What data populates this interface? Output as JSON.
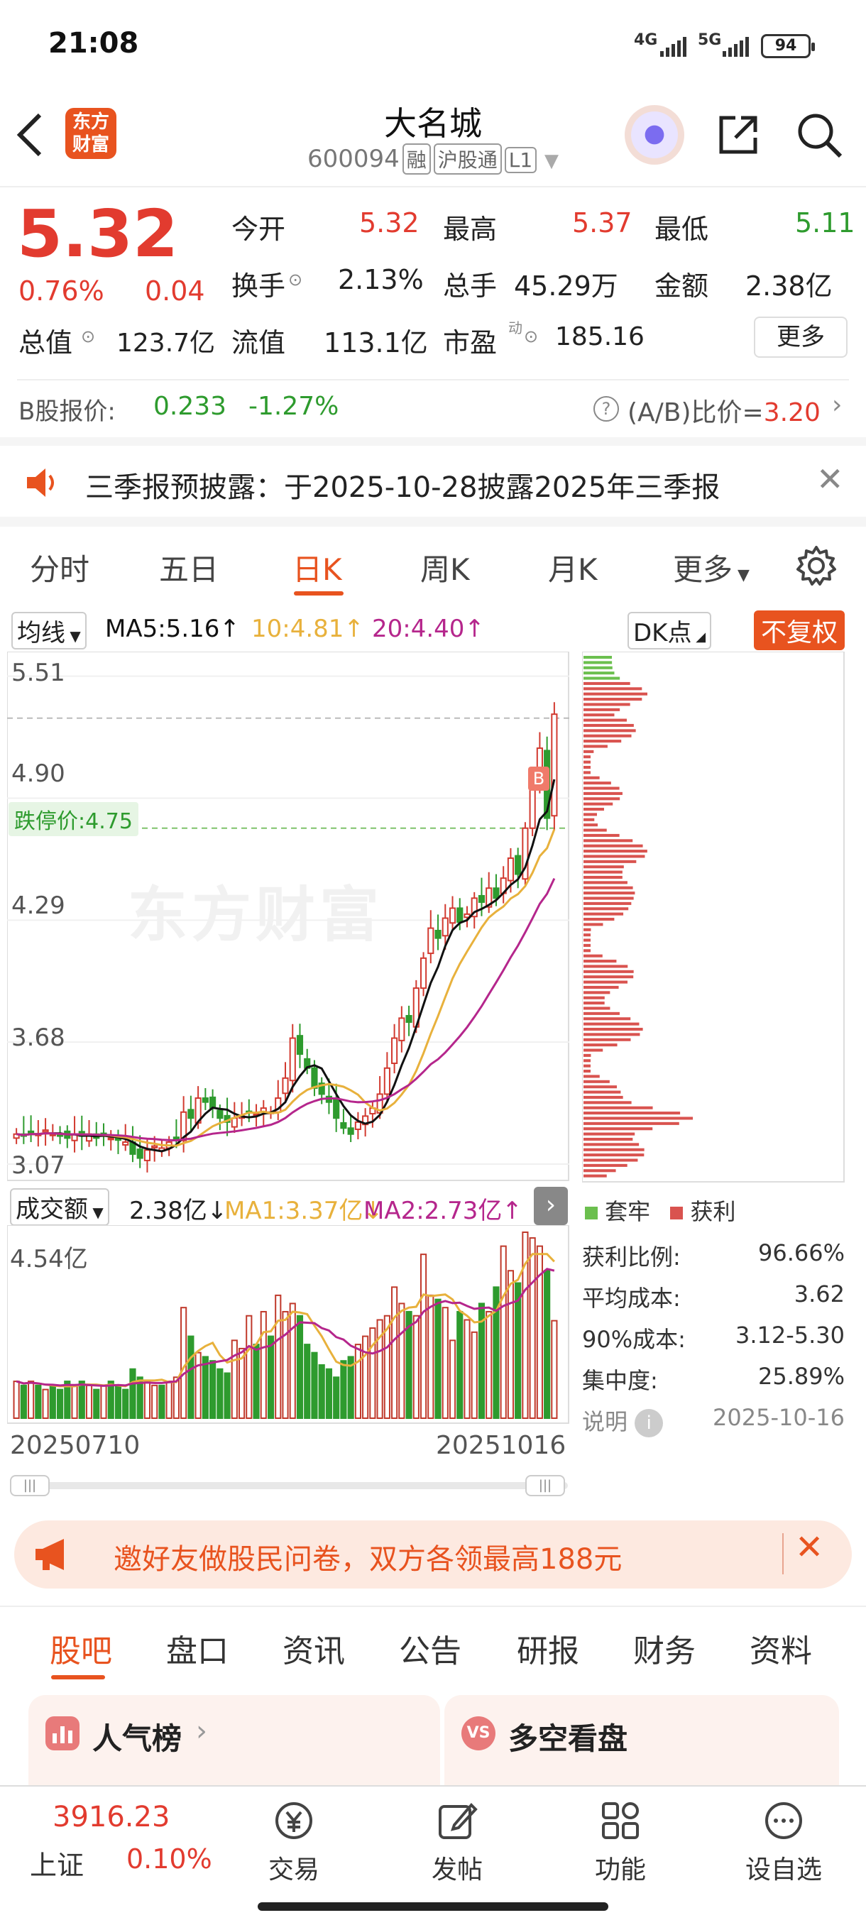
{
  "status_bar": {
    "time": "21:08",
    "net1": "4G",
    "net2": "5G",
    "battery": "94"
  },
  "header": {
    "logo_line1": "东方",
    "logo_line2": "财富",
    "title": "大名城",
    "code": "600094",
    "tag1": "融",
    "tag2": "沪股通",
    "tag3": "L1"
  },
  "quote": {
    "price": "5.32",
    "change_pct": "0.76%",
    "change": "0.04",
    "open_label": "今开",
    "open": "5.32",
    "high_label": "最高",
    "high": "5.37",
    "low_label": "最低",
    "low": "5.11",
    "turnover_label": "换手",
    "turnover": "2.13%",
    "volume_label": "总手",
    "volume": "45.29万",
    "amount_label": "金额",
    "amount": "2.38亿",
    "mktcap_label": "总值",
    "mktcap": "123.7亿",
    "float_label": "流值",
    "float": "113.1亿",
    "pe_label": "市盈",
    "pe_sup": "动",
    "pe": "185.16",
    "more": "更多"
  },
  "b_share": {
    "label": "B股报价:",
    "price": "0.233",
    "change": "-1.27%",
    "ratio_label": "(A/B)比价=",
    "ratio": "3.20"
  },
  "notice": {
    "text": "三季报预披露：于2025-10-28披露2025年三季报"
  },
  "chart_tabs": [
    "分时",
    "五日",
    "日K",
    "周K",
    "月K",
    "更多"
  ],
  "ma": {
    "selector": "均线",
    "ma5": "MA5:5.16",
    "ma10": "10:4.81",
    "ma20": "20:4.40",
    "dk": "DK点",
    "fq": "不复权"
  },
  "kline": {
    "y_labels": [
      "5.51",
      "4.90",
      "4.29",
      "3.68",
      "3.07"
    ],
    "limit_down": "跌停价:4.75",
    "watermark": "东方财富",
    "b_mark": "B"
  },
  "volume": {
    "selector": "成交额",
    "value": "2.38亿",
    "ma1": "MA1:3.37亿",
    "ma2": "MA2:2.73亿",
    "max_label": "4.54亿",
    "start_date": "20250710",
    "end_date": "20251016"
  },
  "chips": {
    "legend_trapped": "套牢",
    "legend_profit": "获利",
    "rows": [
      {
        "label": "获利比例:",
        "value": "96.66%"
      },
      {
        "label": "平均成本:",
        "value": "3.62"
      },
      {
        "label": "90%成本:",
        "value": "3.12-5.30"
      },
      {
        "label": "集中度:",
        "value": "25.89%"
      }
    ],
    "note": "说明",
    "date": "2025-10-16"
  },
  "banner": {
    "text": "邀好友做股民问卷，双方各领最高188元"
  },
  "section_tabs": [
    "股吧",
    "盘口",
    "资讯",
    "公告",
    "研报",
    "财务",
    "资料"
  ],
  "cards": {
    "left": "人气榜",
    "right": "多空看盘"
  },
  "bottom_nav": {
    "index_value": "3916.23",
    "index_name": "上证",
    "index_change": "0.10%",
    "items": [
      "交易",
      "发帖",
      "功能",
      "设自选"
    ]
  },
  "colors": {
    "up": "#e23b2f",
    "down": "#2e9b2e",
    "brand": "#e8531f",
    "ma5": "#111111",
    "ma10": "#e8b13c",
    "ma20": "#b5268c"
  },
  "chart_data": {
    "type": "bar",
    "title": "",
    "x_start": "20250710",
    "x_end": "20251016",
    "price_axis": [
      3.07,
      3.68,
      4.29,
      4.9,
      5.51
    ],
    "close_series": [
      3.22,
      3.21,
      3.23,
      3.22,
      3.24,
      3.22,
      3.21,
      3.2,
      3.22,
      3.21,
      3.22,
      3.2,
      3.21,
      3.2,
      3.19,
      3.18,
      3.12,
      3.1,
      3.14,
      3.16,
      3.15,
      3.18,
      3.2,
      3.33,
      3.3,
      3.4,
      3.38,
      3.35,
      3.3,
      3.28,
      3.3,
      3.31,
      3.33,
      3.32,
      3.35,
      3.33,
      3.4,
      3.5,
      3.7,
      3.62,
      3.55,
      3.45,
      3.42,
      3.38,
      3.3,
      3.25,
      3.22,
      3.28,
      3.31,
      3.35,
      3.42,
      3.55,
      3.7,
      3.8,
      3.78,
      3.95,
      4.1,
      4.25,
      4.2,
      4.3,
      4.35,
      4.28,
      4.32,
      4.4,
      4.38,
      4.45,
      4.4,
      4.5,
      4.6,
      4.52,
      4.75,
      4.95,
      5.15,
      4.8,
      5.32
    ],
    "volume_series": [
      0.9,
      0.8,
      0.9,
      0.8,
      0.7,
      0.8,
      0.7,
      0.9,
      0.8,
      0.9,
      0.8,
      0.7,
      0.8,
      0.9,
      0.8,
      0.7,
      1.2,
      1.0,
      0.9,
      0.8,
      0.8,
      0.9,
      1.0,
      2.7,
      2.0,
      1.6,
      1.5,
      1.4,
      1.2,
      1.1,
      1.9,
      1.7,
      2.5,
      1.8,
      2.6,
      2.0,
      3.0,
      2.6,
      2.8,
      2.5,
      1.8,
      1.6,
      1.3,
      1.2,
      1.0,
      1.4,
      1.5,
      1.8,
      2.0,
      2.2,
      2.4,
      2.5,
      3.2,
      2.8,
      2.6,
      2.5,
      4.0,
      3.0,
      2.9,
      2.7,
      1.9,
      2.6,
      2.4,
      2.1,
      2.8,
      2.6,
      3.2,
      4.2,
      3.6,
      3.3,
      4.54,
      4.4,
      4.2,
      3.6,
      2.38
    ],
    "ylim_volume": [
      0,
      4.54
    ]
  }
}
